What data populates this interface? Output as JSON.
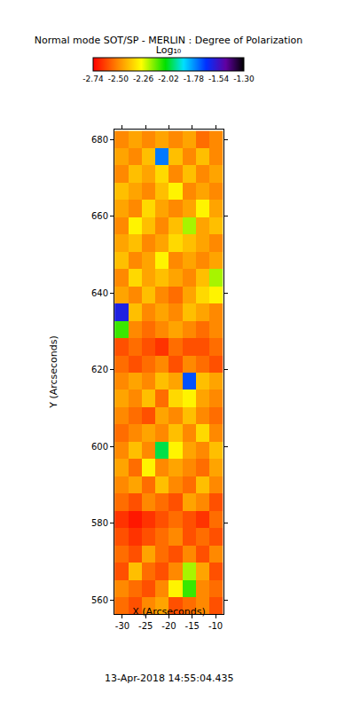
{
  "chart_data": {
    "type": "heatmap",
    "title": "Normal mode SOT/SP - MERLIN : Degree of Polarization",
    "x_label": "X (Arcseconds)",
    "y_label": "Y (Arcseconds)",
    "annotations": [
      "13-Apr-2018 14:55:04.435"
    ],
    "grid": false,
    "xlim": [
      -31.7,
      -8.3
    ],
    "ylim": [
      556.4,
      682.6
    ],
    "xticks": [
      -30,
      -25,
      -20,
      -15,
      -10
    ],
    "yticks": [
      560,
      580,
      600,
      620,
      640,
      660,
      680
    ],
    "x": [
      -30.2,
      -27.3,
      -24.4,
      -21.5,
      -18.6,
      -15.7,
      -12.8,
      -9.9
    ],
    "y": [
      558.5,
      563,
      567.5,
      572,
      576.5,
      581,
      585.5,
      590,
      594.5,
      599,
      603.5,
      608,
      612.5,
      617,
      621.5,
      626,
      630.5,
      635,
      639.5,
      644,
      648.5,
      653,
      657.5,
      662,
      666.5,
      671,
      675.5,
      680
    ],
    "z": [
      [
        -2.55,
        -2.6,
        -2.5,
        -2.45,
        -2.6,
        -2.55,
        -2.5,
        -2.6
      ],
      [
        -2.5,
        -2.55,
        -2.6,
        -2.5,
        -2.3,
        -2.1,
        -2.5,
        -2.55
      ],
      [
        -2.6,
        -2.4,
        -2.55,
        -2.6,
        -2.5,
        -2.2,
        -2.45,
        -2.6
      ],
      [
        -2.55,
        -2.6,
        -2.45,
        -2.55,
        -2.6,
        -2.5,
        -2.6,
        -2.5
      ],
      [
        -2.6,
        -2.65,
        -2.6,
        -2.55,
        -2.5,
        -2.6,
        -2.55,
        -2.6
      ],
      [
        -2.65,
        -2.7,
        -2.65,
        -2.6,
        -2.55,
        -2.6,
        -2.65,
        -2.55
      ],
      [
        -2.55,
        -2.6,
        -2.5,
        -2.55,
        -2.6,
        -2.45,
        -2.5,
        -2.6
      ],
      [
        -2.5,
        -2.45,
        -2.55,
        -2.4,
        -2.5,
        -2.55,
        -2.4,
        -2.5
      ],
      [
        -2.45,
        -2.55,
        -2.3,
        -2.5,
        -2.45,
        -2.5,
        -2.55,
        -2.45
      ],
      [
        -2.5,
        -2.4,
        -2.5,
        -2.0,
        -2.3,
        -2.45,
        -2.5,
        -2.4
      ],
      [
        -2.55,
        -2.5,
        -2.45,
        -2.5,
        -2.4,
        -2.5,
        -2.35,
        -2.5
      ],
      [
        -2.5,
        -2.55,
        -2.6,
        -2.45,
        -2.5,
        -2.4,
        -2.5,
        -2.55
      ],
      [
        -2.45,
        -2.5,
        -2.4,
        -2.55,
        -2.35,
        -2.3,
        -2.45,
        -2.5
      ],
      [
        -2.5,
        -2.45,
        -2.5,
        -2.4,
        -2.45,
        -1.7,
        -2.4,
        -2.45
      ],
      [
        -2.55,
        -2.6,
        -2.55,
        -2.5,
        -2.6,
        -2.5,
        -2.55,
        -2.6
      ],
      [
        -2.6,
        -2.55,
        -2.6,
        -2.65,
        -2.55,
        -2.6,
        -2.6,
        -2.55
      ],
      [
        -2.1,
        -2.5,
        -2.55,
        -2.5,
        -2.45,
        -2.5,
        -2.55,
        -2.5
      ],
      [
        -1.6,
        -2.4,
        -2.5,
        -2.45,
        -2.5,
        -2.4,
        -2.45,
        -2.5
      ],
      [
        -2.45,
        -2.5,
        -2.4,
        -2.5,
        -2.55,
        -2.45,
        -2.35,
        -2.3
      ],
      [
        -2.5,
        -2.35,
        -2.45,
        -2.4,
        -2.45,
        -2.5,
        -2.4,
        -2.2
      ],
      [
        -2.4,
        -2.5,
        -2.45,
        -2.3,
        -2.5,
        -2.45,
        -2.5,
        -2.45
      ],
      [
        -2.45,
        -2.4,
        -2.5,
        -2.45,
        -2.35,
        -2.4,
        -2.45,
        -2.5
      ],
      [
        -2.5,
        -2.3,
        -2.4,
        -2.5,
        -2.4,
        -2.2,
        -2.45,
        -2.4
      ],
      [
        -2.45,
        -2.5,
        -2.35,
        -2.45,
        -2.5,
        -2.45,
        -2.3,
        -2.45
      ],
      [
        -2.4,
        -2.45,
        -2.5,
        -2.4,
        -2.3,
        -2.5,
        -2.45,
        -2.5
      ],
      [
        -2.5,
        -2.4,
        -2.45,
        -2.35,
        -2.5,
        -2.4,
        -2.5,
        -2.45
      ],
      [
        -2.45,
        -2.5,
        -2.4,
        -1.75,
        -2.4,
        -2.5,
        -2.4,
        -2.5
      ],
      [
        -2.5,
        -2.45,
        -2.5,
        -2.45,
        -2.5,
        -2.45,
        -2.55,
        -2.5
      ]
    ],
    "colorbar": {
      "title": "Log₁₀",
      "range": [
        -2.74,
        -1.3
      ],
      "ticks": [
        -2.74,
        {
          "value": -2.5,
          "label": "-2.50"
        },
        -2.26,
        -2.02,
        -1.78,
        -1.54,
        {
          "value": -1.3,
          "label": "-1.30"
        }
      ]
    }
  }
}
